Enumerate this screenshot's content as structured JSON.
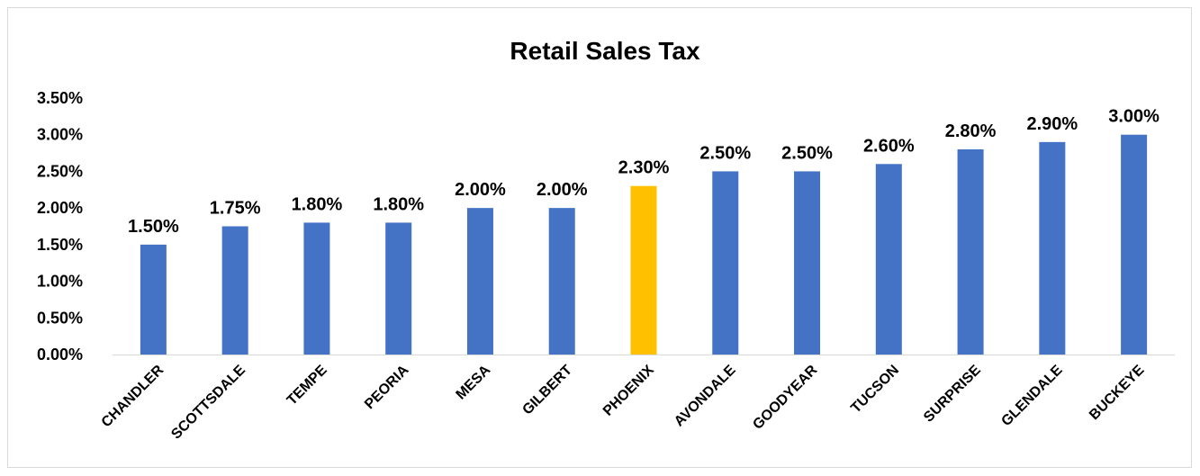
{
  "chart_data": {
    "type": "bar",
    "title": "Retail Sales Tax",
    "xlabel": "",
    "ylabel": "",
    "categories": [
      "CHANDLER",
      "SCOTTSDALE",
      "TEMPE",
      "PEORIA",
      "MESA",
      "GILBERT",
      "PHOENIX",
      "AVONDALE",
      "GOODYEAR",
      "TUCSON",
      "SURPRISE",
      "GLENDALE",
      "BUCKEYE"
    ],
    "values": [
      1.5,
      1.75,
      1.8,
      1.8,
      2.0,
      2.0,
      2.3,
      2.5,
      2.5,
      2.6,
      2.8,
      2.9,
      3.0
    ],
    "data_labels": [
      "1.50%",
      "1.75%",
      "1.80%",
      "1.80%",
      "2.00%",
      "2.00%",
      "2.30%",
      "2.50%",
      "2.50%",
      "2.60%",
      "2.80%",
      "2.90%",
      "3.00%"
    ],
    "y_ticks": [
      0,
      0.5,
      1.0,
      1.5,
      2.0,
      2.5,
      3.0,
      3.5
    ],
    "y_tick_labels": [
      "0.00%",
      "0.50%",
      "1.00%",
      "1.50%",
      "2.00%",
      "2.50%",
      "3.00%",
      "3.50%"
    ],
    "ylim": [
      0,
      3.5
    ],
    "grid": false,
    "legend": "none",
    "colors": {
      "bar": "#4472c4",
      "highlight": "#ffc000",
      "axis": "#d9d9d9"
    },
    "highlight_category": "PHOENIX"
  }
}
